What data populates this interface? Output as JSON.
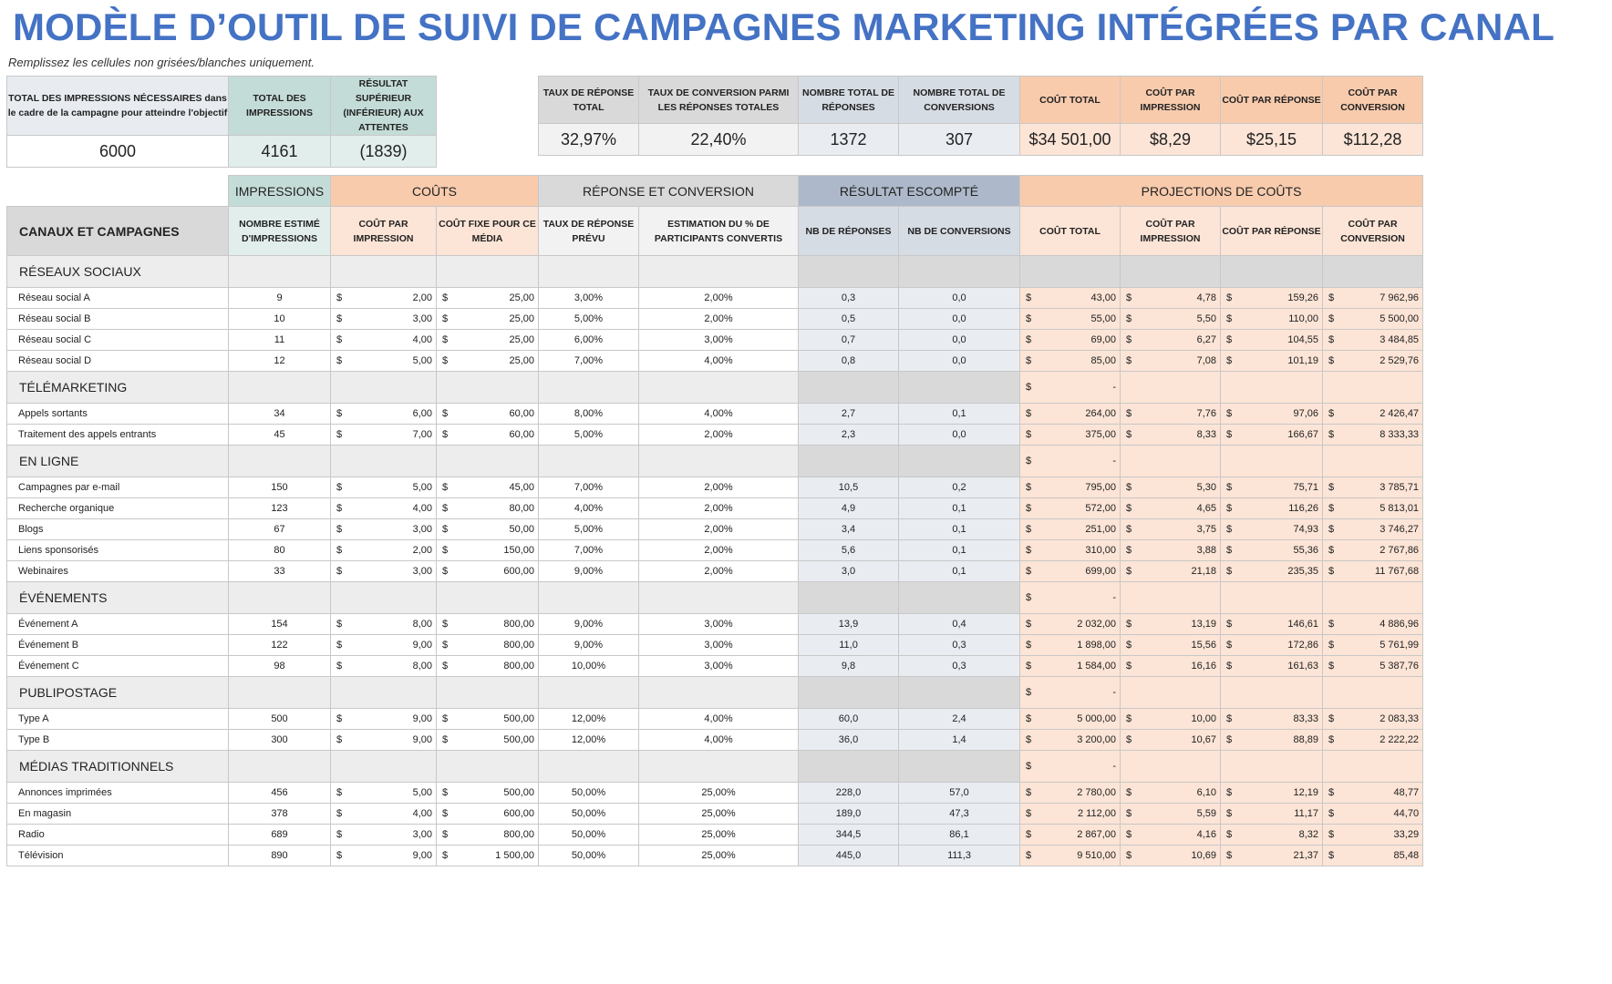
{
  "title": "MODÈLE D’OUTIL DE SUIVI DE CAMPAGNES MARKETING INTÉGRÉES PAR CANAL",
  "subtitle": "Remplissez les cellules non grisées/blanches uniquement.",
  "summary_left": {
    "headers": [
      "TOTAL DES IMPRESSIONS NÉCESSAIRES dans le cadre de la campagne pour atteindre l'objectif",
      "TOTAL DES IMPRESSIONS",
      "RÉSULTAT SUPÉRIEUR (INFÉRIEUR) AUX ATTENTES"
    ],
    "values": [
      "6000",
      "4161",
      "(1839)"
    ]
  },
  "summary_right": {
    "headers": [
      "TAUX DE RÉPONSE TOTAL",
      "TAUX DE CONVERSION PARMI LES RÉPONSES TOTALES",
      "NOMBRE TOTAL DE RÉPONSES",
      "NOMBRE TOTAL DE CONVERSIONS",
      "COÛT TOTAL",
      "COÛT PAR IMPRESSION",
      "COÛT PAR RÉPONSE",
      "COÛT PAR CONVERSION"
    ],
    "values": [
      "32,97%",
      "22,40%",
      "1372",
      "307",
      "$34 501,00",
      "$8,29",
      "$25,15",
      "$112,28"
    ]
  },
  "table": {
    "groups": [
      "IMPRESSIONS",
      "COÛTS",
      "RÉPONSE ET CONVERSION",
      "RÉSULTAT ESCOMPTÉ",
      "PROJECTIONS DE COÛTS"
    ],
    "headers": [
      "CANAUX ET CAMPAGNES",
      "NOMBRE ESTIMÉ D'IMPRESSIONS",
      "COÛT PAR IMPRESSION",
      "COÛT FIXE POUR CE MÉDIA",
      "TAUX DE RÉPONSE PRÉVU",
      "ESTIMATION DU % DE PARTICIPANTS CONVERTIS",
      "NB DE RÉPONSES",
      "NB DE CONVERSIONS",
      "COÛT TOTAL",
      "COÛT PAR IMPRESSION",
      "COÛT PAR RÉPONSE",
      "COÛT PAR CONVERSION"
    ],
    "currency": "$",
    "sections": [
      {
        "name": "RÉSEAUX SOCIAUX",
        "total": "",
        "rows": [
          [
            "Réseau social A",
            "9",
            "2,00",
            "25,00",
            "3,00%",
            "2,00%",
            "0,3",
            "0,0",
            "43,00",
            "4,78",
            "159,26",
            "7 962,96"
          ],
          [
            "Réseau social B",
            "10",
            "3,00",
            "25,00",
            "5,00%",
            "2,00%",
            "0,5",
            "0,0",
            "55,00",
            "5,50",
            "110,00",
            "5 500,00"
          ],
          [
            "Réseau social C",
            "11",
            "4,00",
            "25,00",
            "6,00%",
            "3,00%",
            "0,7",
            "0,0",
            "69,00",
            "6,27",
            "104,55",
            "3 484,85"
          ],
          [
            "Réseau social D",
            "12",
            "5,00",
            "25,00",
            "7,00%",
            "4,00%",
            "0,8",
            "0,0",
            "85,00",
            "7,08",
            "101,19",
            "2 529,76"
          ]
        ]
      },
      {
        "name": "TÉLÉMARKETING",
        "total": "-",
        "rows": [
          [
            "Appels sortants",
            "34",
            "6,00",
            "60,00",
            "8,00%",
            "4,00%",
            "2,7",
            "0,1",
            "264,00",
            "7,76",
            "97,06",
            "2 426,47"
          ],
          [
            "Traitement des appels entrants",
            "45",
            "7,00",
            "60,00",
            "5,00%",
            "2,00%",
            "2,3",
            "0,0",
            "375,00",
            "8,33",
            "166,67",
            "8 333,33"
          ]
        ]
      },
      {
        "name": "EN LIGNE",
        "total": "-",
        "rows": [
          [
            "Campagnes par e-mail",
            "150",
            "5,00",
            "45,00",
            "7,00%",
            "2,00%",
            "10,5",
            "0,2",
            "795,00",
            "5,30",
            "75,71",
            "3 785,71"
          ],
          [
            "Recherche organique",
            "123",
            "4,00",
            "80,00",
            "4,00%",
            "2,00%",
            "4,9",
            "0,1",
            "572,00",
            "4,65",
            "116,26",
            "5 813,01"
          ],
          [
            "Blogs",
            "67",
            "3,00",
            "50,00",
            "5,00%",
            "2,00%",
            "3,4",
            "0,1",
            "251,00",
            "3,75",
            "74,93",
            "3 746,27"
          ],
          [
            "Liens sponsorisés",
            "80",
            "2,00",
            "150,00",
            "7,00%",
            "2,00%",
            "5,6",
            "0,1",
            "310,00",
            "3,88",
            "55,36",
            "2 767,86"
          ],
          [
            "Webinaires",
            "33",
            "3,00",
            "600,00",
            "9,00%",
            "2,00%",
            "3,0",
            "0,1",
            "699,00",
            "21,18",
            "235,35",
            "11 767,68"
          ]
        ]
      },
      {
        "name": "ÉVÉNEMENTS",
        "total": "-",
        "rows": [
          [
            "Événement A",
            "154",
            "8,00",
            "800,00",
            "9,00%",
            "3,00%",
            "13,9",
            "0,4",
            "2 032,00",
            "13,19",
            "146,61",
            "4 886,96"
          ],
          [
            "Événement B",
            "122",
            "9,00",
            "800,00",
            "9,00%",
            "3,00%",
            "11,0",
            "0,3",
            "1 898,00",
            "15,56",
            "172,86",
            "5 761,99"
          ],
          [
            "Événement C",
            "98",
            "8,00",
            "800,00",
            "10,00%",
            "3,00%",
            "9,8",
            "0,3",
            "1 584,00",
            "16,16",
            "161,63",
            "5 387,76"
          ]
        ]
      },
      {
        "name": "PUBLIPOSTAGE",
        "total": "-",
        "rows": [
          [
            "Type A",
            "500",
            "9,00",
            "500,00",
            "12,00%",
            "4,00%",
            "60,0",
            "2,4",
            "5 000,00",
            "10,00",
            "83,33",
            "2 083,33"
          ],
          [
            "Type B",
            "300",
            "9,00",
            "500,00",
            "12,00%",
            "4,00%",
            "36,0",
            "1,4",
            "3 200,00",
            "10,67",
            "88,89",
            "2 222,22"
          ]
        ]
      },
      {
        "name": "MÉDIAS TRADITIONNELS",
        "total": "-",
        "rows": [
          [
            "Annonces imprimées",
            "456",
            "5,00",
            "500,00",
            "50,00%",
            "25,00%",
            "228,0",
            "57,0",
            "2 780,00",
            "6,10",
            "12,19",
            "48,77"
          ],
          [
            "En magasin",
            "378",
            "4,00",
            "600,00",
            "50,00%",
            "25,00%",
            "189,0",
            "47,3",
            "2 112,00",
            "5,59",
            "11,17",
            "44,70"
          ],
          [
            "Radio",
            "689",
            "3,00",
            "800,00",
            "50,00%",
            "25,00%",
            "344,5",
            "86,1",
            "2 867,00",
            "4,16",
            "8,32",
            "33,29"
          ],
          [
            "Télévision",
            "890",
            "9,00",
            "1 500,00",
            "50,00%",
            "25,00%",
            "445,0",
            "111,3",
            "9 510,00",
            "10,69",
            "21,37",
            "85,48"
          ]
        ]
      }
    ]
  },
  "colors": {
    "title": "#4472c4",
    "impressions": "#c4dcd7",
    "costs": "#f8cbad",
    "results": "#adb9ca",
    "response": "#d9d9d9"
  }
}
